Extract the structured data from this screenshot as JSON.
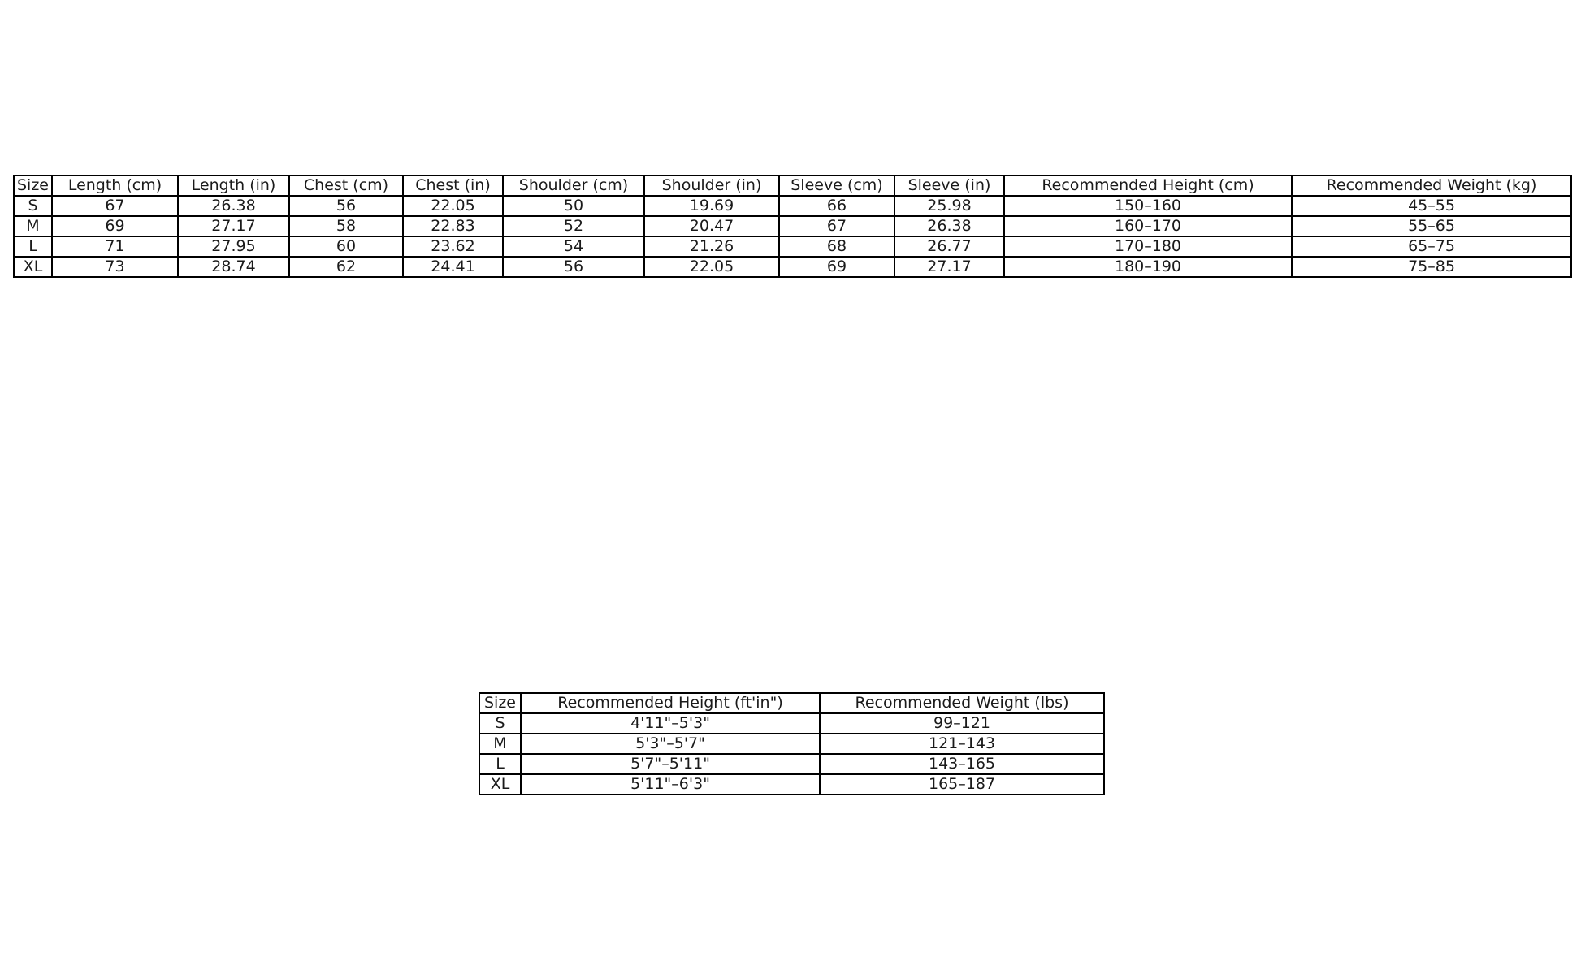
{
  "colors": {
    "background": "#ffffff",
    "table_border": "#000000",
    "table_text": "#1a1a1a"
  },
  "tables": [
    {
      "name": "garment-size-chart-metric",
      "columns": [
        "Size",
        "Length (cm)",
        "Length (in)",
        "Chest (cm)",
        "Chest (in)",
        "Shoulder (cm)",
        "Shoulder (in)",
        "Sleeve (cm)",
        "Sleeve (in)",
        "Recommended Height (cm)",
        "Recommended Weight (kg)"
      ],
      "rows": [
        [
          "S",
          "67",
          "26.38",
          "56",
          "22.05",
          "50",
          "19.69",
          "66",
          "25.98",
          "150–160",
          "45–55"
        ],
        [
          "M",
          "69",
          "27.17",
          "58",
          "22.83",
          "52",
          "20.47",
          "67",
          "26.38",
          "160–170",
          "55–65"
        ],
        [
          "L",
          "71",
          "27.95",
          "60",
          "23.62",
          "54",
          "21.26",
          "68",
          "26.77",
          "170–180",
          "65–75"
        ],
        [
          "XL",
          "73",
          "28.74",
          "62",
          "24.41",
          "56",
          "22.05",
          "69",
          "27.17",
          "180–190",
          "75–85"
        ]
      ]
    },
    {
      "name": "garment-size-chart-imperial",
      "columns": [
        "Size",
        "Recommended Height (ft'in\")",
        "Recommended Weight (lbs)"
      ],
      "rows": [
        [
          "S",
          "4'11\"–5'3\"",
          "99–121"
        ],
        [
          "M",
          "5'3\"–5'7\"",
          "121–143"
        ],
        [
          "L",
          "5'7\"–5'11\"",
          "143–165"
        ],
        [
          "XL",
          "5'11\"–6'3\"",
          "165–187"
        ]
      ]
    }
  ]
}
